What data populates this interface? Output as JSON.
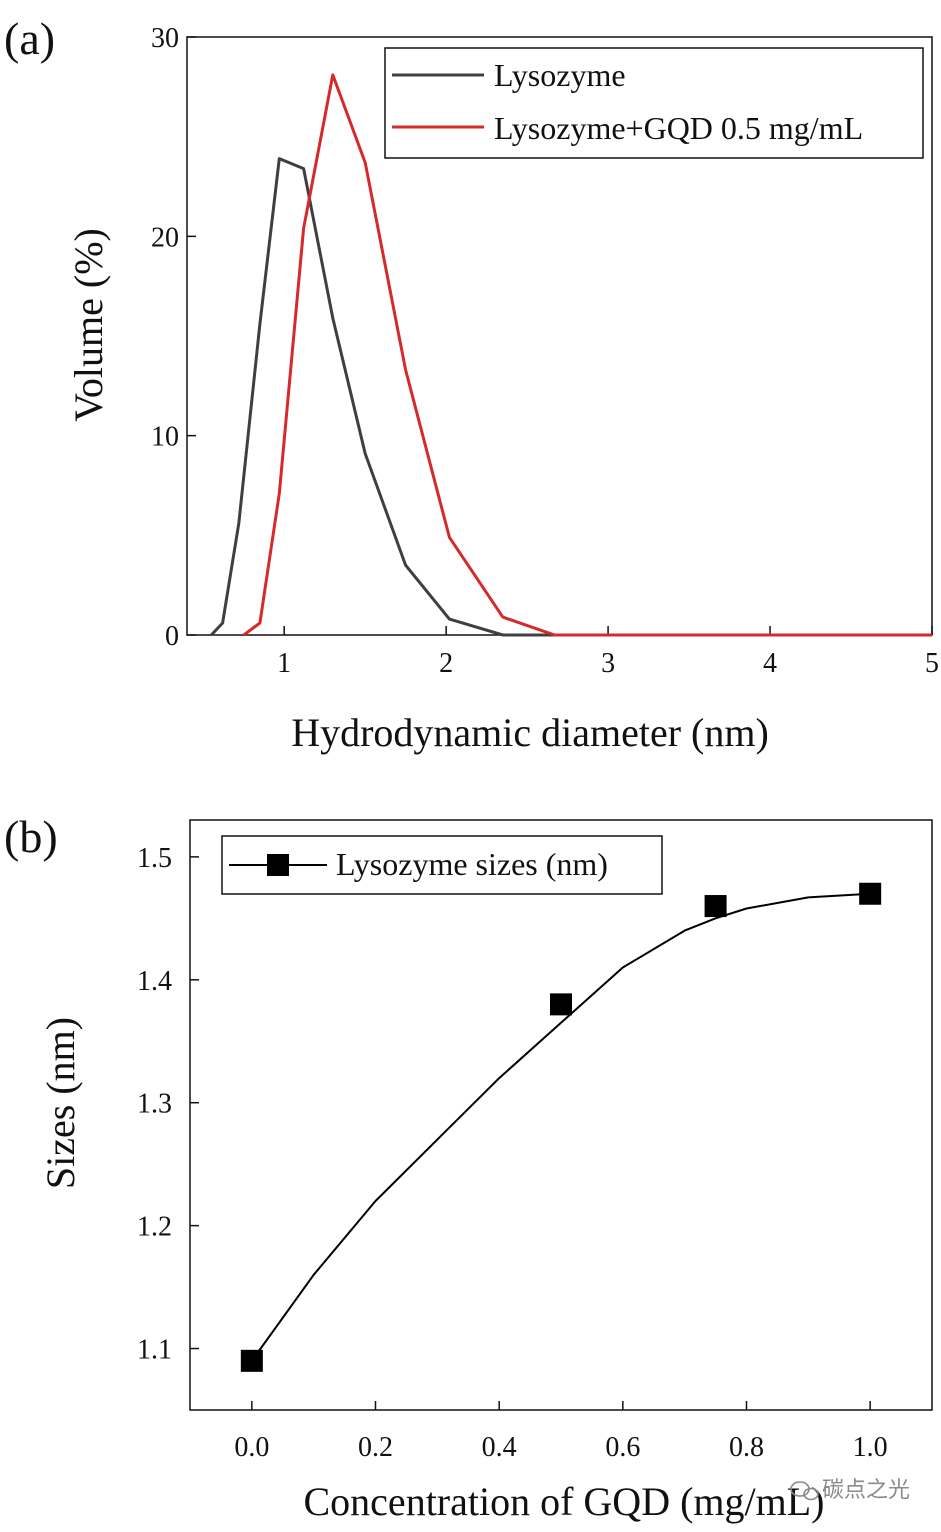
{
  "watermark": "碳点之光",
  "chart_data": [
    {
      "panel": "(a)",
      "type": "line",
      "xlabel": "Hydrodynamic diameter (nm)",
      "ylabel": "Volume (%)",
      "xlim": [
        0.4,
        5
      ],
      "ylim": [
        0,
        30
      ],
      "xticks": [
        1,
        2,
        3,
        4,
        5
      ],
      "yticks": [
        0,
        10,
        20,
        30
      ],
      "legend": {
        "placement": "top-right",
        "box": true
      },
      "grid": false,
      "series": [
        {
          "name": "Lysozyme",
          "color": "#3f3f3f",
          "x": [
            0.55,
            0.62,
            0.72,
            0.85,
            0.97,
            1.12,
            1.3,
            1.5,
            1.75,
            2.02,
            2.35,
            2.65,
            3.0,
            4.0,
            5.0
          ],
          "y": [
            0,
            0.6,
            5.6,
            15.6,
            23.9,
            23.4,
            15.9,
            9.1,
            3.5,
            0.8,
            0,
            0,
            0,
            0,
            0
          ]
        },
        {
          "name": "Lysozyme+GQD 0.5 mg/mL",
          "color": "#d62a2a",
          "x": [
            0.75,
            0.85,
            0.97,
            1.12,
            1.3,
            1.5,
            1.75,
            2.02,
            2.35,
            2.67,
            3.0,
            4.0,
            5.0
          ],
          "y": [
            0,
            0.6,
            7.1,
            20.4,
            28.1,
            23.7,
            13.3,
            4.9,
            0.9,
            0,
            0,
            0,
            0
          ]
        }
      ]
    },
    {
      "panel": "(b)",
      "type": "scatter",
      "xlabel": "Concentration of GQD (mg/mL)",
      "ylabel": "Sizes (nm)",
      "xlim": [
        -0.1,
        1.1
      ],
      "ylim": [
        1.05,
        1.53
      ],
      "xticks": [
        "0.0",
        "0.2",
        "0.4",
        "0.6",
        "0.8",
        "1.0"
      ],
      "yticks": [
        "1.1",
        "1.2",
        "1.3",
        "1.4",
        "1.5"
      ],
      "legend": {
        "placement": "top-left",
        "box": true
      },
      "grid": false,
      "series": [
        {
          "name": "Lysozyme sizes (nm)",
          "marker": "square",
          "color": "#000000",
          "x": [
            0.0,
            0.5,
            0.75,
            1.0
          ],
          "y": [
            1.09,
            1.38,
            1.46,
            1.47
          ]
        }
      ],
      "fit_curve": {
        "x": [
          0.0,
          0.1,
          0.2,
          0.3,
          0.4,
          0.5,
          0.6,
          0.7,
          0.75,
          0.8,
          0.9,
          1.0
        ],
        "y": [
          1.09,
          1.16,
          1.22,
          1.27,
          1.32,
          1.365,
          1.41,
          1.44,
          1.45,
          1.458,
          1.467,
          1.47
        ]
      }
    }
  ]
}
